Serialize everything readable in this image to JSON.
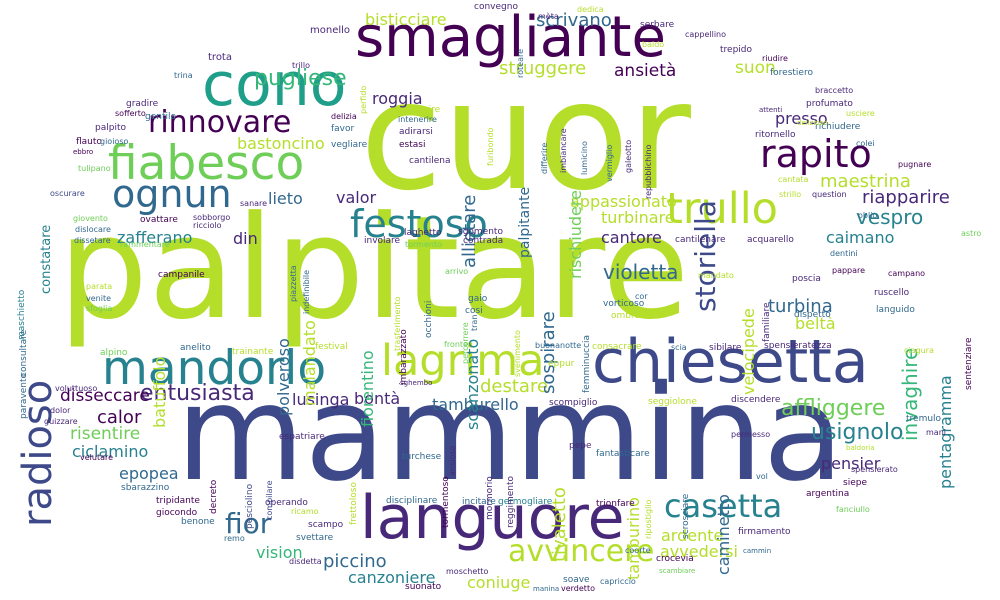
{
  "palette": [
    "#440154",
    "#482878",
    "#3e4989",
    "#31688e",
    "#26828e",
    "#1f9e89",
    "#35b779",
    "#6ece58",
    "#b5de2b",
    "#fde725"
  ],
  "words": [
    {
      "text": "cuor",
      "color": "#b5de2b"
    },
    {
      "text": "palpitare",
      "color": "#b5de2b"
    },
    {
      "text": "mammina",
      "color": "#3e4989"
    },
    {
      "text": "smagliante",
      "color": "#440154"
    },
    {
      "text": "cono",
      "color": "#1f9e89"
    },
    {
      "text": "languore",
      "color": "#482878"
    },
    {
      "text": "chiesetta",
      "color": "#3e4989"
    },
    {
      "text": "fiabesco",
      "color": "#6ece58"
    },
    {
      "text": "mandorlo",
      "color": "#26828e"
    },
    {
      "text": "lagrima",
      "color": "#b5de2b"
    },
    {
      "text": "trullo",
      "color": "#b5de2b"
    },
    {
      "text": "rapito",
      "color": "#440154"
    },
    {
      "text": "ognun",
      "color": "#31688e"
    },
    {
      "text": "festoso",
      "color": "#26828e"
    },
    {
      "text": "radioso",
      "color": "#3e4989"
    },
    {
      "text": "rinnovare",
      "color": "#440154"
    },
    {
      "text": "casetta",
      "color": "#26828e"
    },
    {
      "text": "avvincere",
      "color": "#b5de2b"
    },
    {
      "text": "fior",
      "color": "#31688e"
    },
    {
      "text": "storiella",
      "color": "#3e4989"
    },
    {
      "text": "pugliese",
      "color": "#35b779"
    },
    {
      "text": "entusiasta",
      "color": "#482878"
    },
    {
      "text": "affliggere",
      "color": "#6ece58"
    },
    {
      "text": "usignolo",
      "color": "#26828e"
    },
    {
      "text": "invaghire",
      "color": "#35b779"
    },
    {
      "text": "vespro",
      "color": "#26828e"
    },
    {
      "text": "maestrina",
      "color": "#b5de2b"
    },
    {
      "text": "riapparire",
      "color": "#482878"
    },
    {
      "text": "struggere",
      "color": "#b5de2b"
    },
    {
      "text": "scrivano",
      "color": "#31688e"
    },
    {
      "text": "bisticciare",
      "color": "#b5de2b"
    },
    {
      "text": "ansietà",
      "color": "#440154"
    },
    {
      "text": "suon",
      "color": "#b5de2b"
    },
    {
      "text": "roggia",
      "color": "#482878"
    },
    {
      "text": "presso",
      "color": "#482878"
    },
    {
      "text": "bastoncino",
      "color": "#b5de2b"
    },
    {
      "text": "appassionato",
      "color": "#b5de2b"
    },
    {
      "text": "turbinare",
      "color": "#b5de2b"
    },
    {
      "text": "cantore",
      "color": "#482878"
    },
    {
      "text": "violetta",
      "color": "#31688e"
    },
    {
      "text": "caimano",
      "color": "#26828e"
    },
    {
      "text": "pentagramma",
      "color": "#26828e"
    },
    {
      "text": "turbina",
      "color": "#31688e"
    },
    {
      "text": "beltà",
      "color": "#b5de2b"
    },
    {
      "text": "destare",
      "color": "#b5de2b"
    },
    {
      "text": "disseccare",
      "color": "#440154"
    },
    {
      "text": "calor",
      "color": "#440154"
    },
    {
      "text": "bontà",
      "color": "#482878"
    },
    {
      "text": "lusinga",
      "color": "#482878"
    },
    {
      "text": "tamburello",
      "color": "#31688e"
    },
    {
      "text": "risentire",
      "color": "#6ece58"
    },
    {
      "text": "ciclamino",
      "color": "#26828e"
    },
    {
      "text": "epopea",
      "color": "#31688e"
    },
    {
      "text": "pensier",
      "color": "#482878"
    },
    {
      "text": "vision",
      "color": "#35b779"
    },
    {
      "text": "piccino",
      "color": "#31688e"
    },
    {
      "text": "canzoniere",
      "color": "#26828e"
    },
    {
      "text": "coniuge",
      "color": "#b5de2b"
    },
    {
      "text": "ardente",
      "color": "#b5de2b"
    },
    {
      "text": "avvedersi",
      "color": "#b5de2b"
    },
    {
      "text": "lieto",
      "color": "#31688e"
    },
    {
      "text": "valor",
      "color": "#482878"
    },
    {
      "text": "zafferano",
      "color": "#26828e"
    },
    {
      "text": "din",
      "color": "#482878"
    },
    {
      "text": "polveroso",
      "color": "#31688e"
    },
    {
      "text": "malandato",
      "color": "#b5de2b"
    },
    {
      "text": "batuffolo",
      "color": "#b5de2b"
    },
    {
      "text": "fiorentino",
      "color": "#35b779"
    },
    {
      "text": "scanzonato",
      "color": "#26828e"
    },
    {
      "text": "sospirare",
      "color": "#31688e"
    },
    {
      "text": "allietare",
      "color": "#31688e"
    },
    {
      "text": "rischiudere",
      "color": "#6ece58"
    },
    {
      "text": "velocipede",
      "color": "#b5de2b"
    },
    {
      "text": "caminetto",
      "color": "#31688e"
    },
    {
      "text": "tamburino",
      "color": "#b5de2b"
    },
    {
      "text": "tivaletto",
      "color": "#b5de2b"
    },
    {
      "text": "palpitante",
      "color": "#31688e"
    },
    {
      "text": "monello",
      "color": "#482878"
    },
    {
      "text": "trota",
      "color": "#482878"
    },
    {
      "text": "gentile",
      "color": "#31688e"
    },
    {
      "text": "gradire",
      "color": "#482878"
    },
    {
      "text": "palpito",
      "color": "#482878"
    },
    {
      "text": "flauto",
      "color": "#440154"
    },
    {
      "text": "favor",
      "color": "#31688e"
    },
    {
      "text": "sfiorire",
      "color": "#b5de2b"
    },
    {
      "text": "adirarsi",
      "color": "#482878"
    },
    {
      "text": "estasi",
      "color": "#440154"
    },
    {
      "text": "cantilena",
      "color": "#482878"
    },
    {
      "text": "vegliare",
      "color": "#31688e"
    },
    {
      "text": "delizia",
      "color": "#440154"
    },
    {
      "text": "profumato",
      "color": "#482878"
    },
    {
      "text": "forestiero",
      "color": "#31688e"
    },
    {
      "text": "ritornello",
      "color": "#482878"
    },
    {
      "text": "richiudere",
      "color": "#31688e"
    },
    {
      "text": "sgomento",
      "color": "#482878"
    },
    {
      "text": "laghetto",
      "color": "#482878"
    },
    {
      "text": "contrada",
      "color": "#482878"
    },
    {
      "text": "involare",
      "color": "#482878"
    },
    {
      "text": "cantilenare",
      "color": "#482878"
    },
    {
      "text": "acquarello",
      "color": "#482878"
    },
    {
      "text": "campanile",
      "color": "#440154"
    },
    {
      "text": "ovattare",
      "color": "#440154"
    },
    {
      "text": "sobborgo",
      "color": "#482878"
    },
    {
      "text": "constatare",
      "color": "#26828e"
    },
    {
      "text": "maschietto",
      "color": "#26828e"
    },
    {
      "text": "paravento",
      "color": "#31688e"
    },
    {
      "text": "alpino",
      "color": "#6ece58"
    },
    {
      "text": "anelito",
      "color": "#31688e"
    },
    {
      "text": "trainante",
      "color": "#b5de2b"
    },
    {
      "text": "festival",
      "color": "#b5de2b"
    },
    {
      "text": "buonanotte",
      "color": "#31688e"
    },
    {
      "text": "consacrare",
      "color": "#b5de2b"
    },
    {
      "text": "scia",
      "color": "#31688e"
    },
    {
      "text": "sibilare",
      "color": "#482878"
    },
    {
      "text": "spensieratezza",
      "color": "#482878"
    },
    {
      "text": "ciagura",
      "color": "#b5de2b"
    },
    {
      "text": "languido",
      "color": "#31688e"
    },
    {
      "text": "dispetto",
      "color": "#31688e"
    },
    {
      "text": "poscia",
      "color": "#482878"
    },
    {
      "text": "ruscello",
      "color": "#482878"
    },
    {
      "text": "sentenziare",
      "color": "#440154"
    },
    {
      "text": "seggiolone",
      "color": "#b5de2b"
    },
    {
      "text": "discendere",
      "color": "#482878"
    },
    {
      "text": "scompiglio",
      "color": "#482878"
    },
    {
      "text": "permesso",
      "color": "#482878"
    },
    {
      "text": "tremulo",
      "color": "#31688e"
    },
    {
      "text": "mani",
      "color": "#482878"
    },
    {
      "text": "spensierato",
      "color": "#482878"
    },
    {
      "text": "siepe",
      "color": "#440154"
    },
    {
      "text": "argentina",
      "color": "#440154"
    },
    {
      "text": "fanciullo",
      "color": "#6ece58"
    },
    {
      "text": "firmamento",
      "color": "#482878"
    },
    {
      "text": "crocevia",
      "color": "#440154"
    },
    {
      "text": "soave",
      "color": "#31688e"
    },
    {
      "text": "capriccio",
      "color": "#31688e"
    },
    {
      "text": "verdetto",
      "color": "#440154"
    },
    {
      "text": "suonato",
      "color": "#440154"
    },
    {
      "text": "moschetto",
      "color": "#482878"
    },
    {
      "text": "svettare",
      "color": "#31688e"
    },
    {
      "text": "scampo",
      "color": "#482878"
    },
    {
      "text": "operando",
      "color": "#482878"
    },
    {
      "text": "tripidante",
      "color": "#440154"
    },
    {
      "text": "giocondo",
      "color": "#440154"
    },
    {
      "text": "benone",
      "color": "#31688e"
    },
    {
      "text": "sbarazzino",
      "color": "#31688e"
    },
    {
      "text": "velutare",
      "color": "#440154"
    },
    {
      "text": "espatriare",
      "color": "#482878"
    },
    {
      "text": "disciplinare",
      "color": "#31688e"
    },
    {
      "text": "incitare",
      "color": "#31688e"
    },
    {
      "text": "germogliare",
      "color": "#26828e"
    },
    {
      "text": "trionfare",
      "color": "#440154"
    },
    {
      "text": "turchese",
      "color": "#31688e"
    },
    {
      "text": "fantasticare",
      "color": "#31688e"
    },
    {
      "text": "decreto",
      "color": "#440154"
    },
    {
      "text": "pesciolino",
      "color": "#3e4989"
    },
    {
      "text": "compilare",
      "color": "#3e4989"
    },
    {
      "text": "reggimento",
      "color": "#482878"
    },
    {
      "text": "mormorio",
      "color": "#482878"
    },
    {
      "text": "tormentoso",
      "color": "#440154"
    },
    {
      "text": "frettoloso",
      "color": "#b5de2b"
    },
    {
      "text": "scrosciare",
      "color": "#31688e"
    },
    {
      "text": "pepe",
      "color": "#482878"
    },
    {
      "text": "ansioso",
      "color": "#482878"
    },
    {
      "text": "convegno",
      "color": "#482878"
    },
    {
      "text": "serbare",
      "color": "#482878"
    },
    {
      "text": "cappellino",
      "color": "#482878"
    },
    {
      "text": "trepido",
      "color": "#482878"
    },
    {
      "text": "riudire",
      "color": "#440154"
    },
    {
      "text": "braccetto",
      "color": "#482878"
    },
    {
      "text": "usciere",
      "color": "#b5de2b"
    },
    {
      "text": "attenti",
      "color": "#482878"
    },
    {
      "text": "pugnare",
      "color": "#440154"
    },
    {
      "text": "cantata",
      "color": "#b5de2b"
    },
    {
      "text": "strillo",
      "color": "#b5de2b"
    },
    {
      "text": "question",
      "color": "#482878"
    },
    {
      "text": "oblio",
      "color": "#31688e"
    },
    {
      "text": "dentini",
      "color": "#31688e"
    },
    {
      "text": "astro",
      "color": "#6ece58"
    },
    {
      "text": "pappare",
      "color": "#440154"
    },
    {
      "text": "campano",
      "color": "#440154"
    },
    {
      "text": "trina",
      "color": "#31688e"
    },
    {
      "text": "sofferto",
      "color": "#440154"
    },
    {
      "text": "gioioso",
      "color": "#31688e"
    },
    {
      "text": "ebbro",
      "color": "#440154"
    },
    {
      "text": "tulipano",
      "color": "#6ece58"
    },
    {
      "text": "oscurare",
      "color": "#3e4989"
    },
    {
      "text": "giovento",
      "color": "#6ece58"
    },
    {
      "text": "dislocare",
      "color": "#31688e"
    },
    {
      "text": "dissetare",
      "color": "#31688e"
    },
    {
      "text": "rammentare",
      "color": "#6ece58"
    },
    {
      "text": "ricciolo",
      "color": "#482878"
    },
    {
      "text": "sanare",
      "color": "#482878"
    },
    {
      "text": "occhioni",
      "color": "#31688e"
    },
    {
      "text": "cosi",
      "color": "#31688e"
    },
    {
      "text": "gaio",
      "color": "#31688e"
    },
    {
      "text": "imbarazzato",
      "color": "#440154"
    },
    {
      "text": "trasferimento",
      "color": "#b5de2b"
    },
    {
      "text": "femminuccia",
      "color": "#31688e"
    },
    {
      "text": "vorticoso",
      "color": "#31688e"
    },
    {
      "text": "ombroso",
      "color": "#b5de2b"
    },
    {
      "text": "familiare",
      "color": "#482878"
    },
    {
      "text": "mandato",
      "color": "#b5de2b"
    },
    {
      "text": "consultare",
      "color": "#31688e"
    },
    {
      "text": "venite",
      "color": "#31688e"
    },
    {
      "text": "sfoglia",
      "color": "#6ece58"
    },
    {
      "text": "parata",
      "color": "#b5de2b"
    },
    {
      "text": "voluttuoso",
      "color": "#482878"
    },
    {
      "text": "dolor",
      "color": "#482878"
    },
    {
      "text": "guizzare",
      "color": "#482878"
    },
    {
      "text": "mèta",
      "color": "#482878"
    },
    {
      "text": "dedica",
      "color": "#b5de2b"
    },
    {
      "text": "roteare",
      "color": "#31688e"
    },
    {
      "text": "baldo",
      "color": "#b5de2b"
    },
    {
      "text": "trillo",
      "color": "#482878"
    },
    {
      "text": "perfido",
      "color": "#b5de2b"
    },
    {
      "text": "intenerire",
      "color": "#31688e"
    },
    {
      "text": "furibondo",
      "color": "#b5de2b"
    },
    {
      "text": "differire",
      "color": "#31688e"
    },
    {
      "text": "imbiancare",
      "color": "#482878"
    },
    {
      "text": "lumicino",
      "color": "#31688e"
    },
    {
      "text": "vermiglio",
      "color": "#31688e"
    },
    {
      "text": "galeotto",
      "color": "#482878"
    },
    {
      "text": "repubblichino",
      "color": "#482878"
    },
    {
      "text": "delizioso",
      "color": "#b5de2b"
    },
    {
      "text": "colei",
      "color": "#31688e"
    },
    {
      "text": "tran",
      "color": "#31688e"
    },
    {
      "text": "svenimento",
      "color": "#b5de2b"
    },
    {
      "text": "eppur",
      "color": "#b5de2b"
    },
    {
      "text": "cor",
      "color": "#31688e"
    },
    {
      "text": "ripostiglio",
      "color": "#b5de2b"
    },
    {
      "text": "sghembo",
      "color": "#482878"
    },
    {
      "text": "coorte",
      "color": "#31688e"
    },
    {
      "text": "vol",
      "color": "#31688e"
    },
    {
      "text": "ricamo",
      "color": "#b5de2b"
    },
    {
      "text": "remo",
      "color": "#31688e"
    },
    {
      "text": "disdetta",
      "color": "#482878"
    },
    {
      "text": "cammin",
      "color": "#31688e"
    },
    {
      "text": "baldoria",
      "color": "#b5de2b"
    },
    {
      "text": "manina",
      "color": "#31688e"
    },
    {
      "text": "piazzetta",
      "color": "#31688e"
    },
    {
      "text": "indefinibile",
      "color": "#31688e"
    },
    {
      "text": "arrivo",
      "color": "#6ece58"
    },
    {
      "text": "fronte",
      "color": "#6ece58"
    },
    {
      "text": "percorrere",
      "color": "#6ece58"
    },
    {
      "text": "scambiare",
      "color": "#6ece58"
    },
    {
      "text": "tormento",
      "color": "#6ece58"
    }
  ]
}
